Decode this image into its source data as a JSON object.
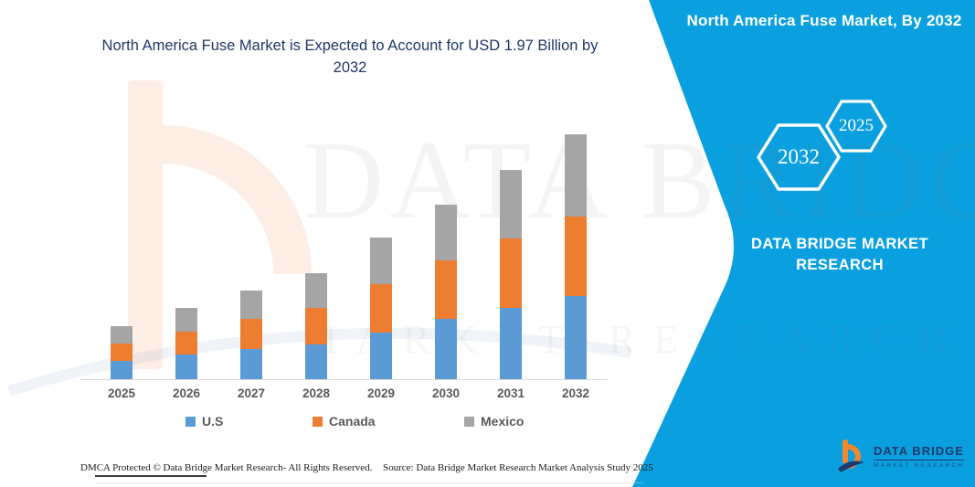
{
  "headline": {
    "line1": "North America Fuse Market is Expected to Account for USD 1.97 Billion by",
    "line2": "2032"
  },
  "side_panel": {
    "title": "North America Fuse Market, By 2032",
    "hexagon_labels": [
      "2032",
      "2025"
    ],
    "brand_name": "DATA BRIDGE MARKET RESEARCH",
    "background_color": "#0AA0DF"
  },
  "watermark": {
    "line1": "DATA BRIDGE",
    "line2": "MARKET RESEARCH"
  },
  "chart_data": {
    "type": "bar",
    "stacked": true,
    "title": "North America Fuse Market is Expected to Account for USD 1.97 Billion by 2032",
    "unit": "USD Billion (estimated from bar heights)",
    "categories": [
      "2025",
      "2026",
      "2027",
      "2028",
      "2029",
      "2030",
      "2031",
      "2032"
    ],
    "series": [
      {
        "name": "U.S",
        "color": "#5B9BD5",
        "values": [
          0.15,
          0.2,
          0.24,
          0.28,
          0.37,
          0.48,
          0.57,
          0.67
        ]
      },
      {
        "name": "Canada",
        "color": "#ED7D31",
        "values": [
          0.14,
          0.18,
          0.24,
          0.29,
          0.39,
          0.47,
          0.56,
          0.64
        ]
      },
      {
        "name": "Mexico",
        "color": "#A5A5A5",
        "values": [
          0.14,
          0.19,
          0.23,
          0.28,
          0.37,
          0.45,
          0.55,
          0.66
        ]
      }
    ],
    "totals": [
      0.43,
      0.57,
      0.71,
      0.85,
      1.13,
      1.4,
      1.68,
      1.97
    ],
    "y_axis_visible": false,
    "gridlines": false,
    "legend_position": "bottom"
  },
  "footer": {
    "dmca": "DMCA Protected © Data Bridge Market Research-  All Rights Reserved.",
    "source": "Source: Data Bridge Market Research  Market Analysis Study 2025"
  },
  "footer_logo": {
    "brand": "DATA BRIDGE",
    "tagline": "MARKET RESEARCH"
  },
  "colors": {
    "panel_teal": "#0AA0DF",
    "headline_navy": "#1F3864",
    "bar_blue": "#5B9BD5",
    "bar_orange": "#ED7D31",
    "bar_gray": "#A5A5A5",
    "axis_text_gray": "#595959",
    "logo_navy": "#1E3A6E"
  }
}
